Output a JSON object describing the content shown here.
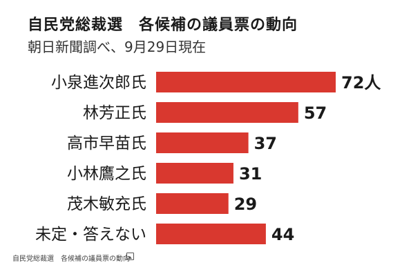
{
  "chart_data": {
    "type": "bar",
    "orientation": "horizontal",
    "title": "自民党総裁選　各候補の議員票の動向",
    "subtitle": "朝日新聞調べ、9月29日現在",
    "categories": [
      "小泉進次郎氏",
      "林芳正氏",
      "高市早苗氏",
      "小林鷹之氏",
      "茂木敏充氏",
      "未定・答えない"
    ],
    "values": [
      72,
      57,
      37,
      31,
      29,
      44
    ],
    "value_labels": [
      "72人",
      "57",
      "37",
      "31",
      "29",
      "44"
    ],
    "bar_color": "#d9382f",
    "xlim": [
      0,
      72
    ],
    "grid": false,
    "legend": "none"
  },
  "caption": "自民党総裁選　各候補の議員票の動向",
  "caption_icon": "image-icon"
}
